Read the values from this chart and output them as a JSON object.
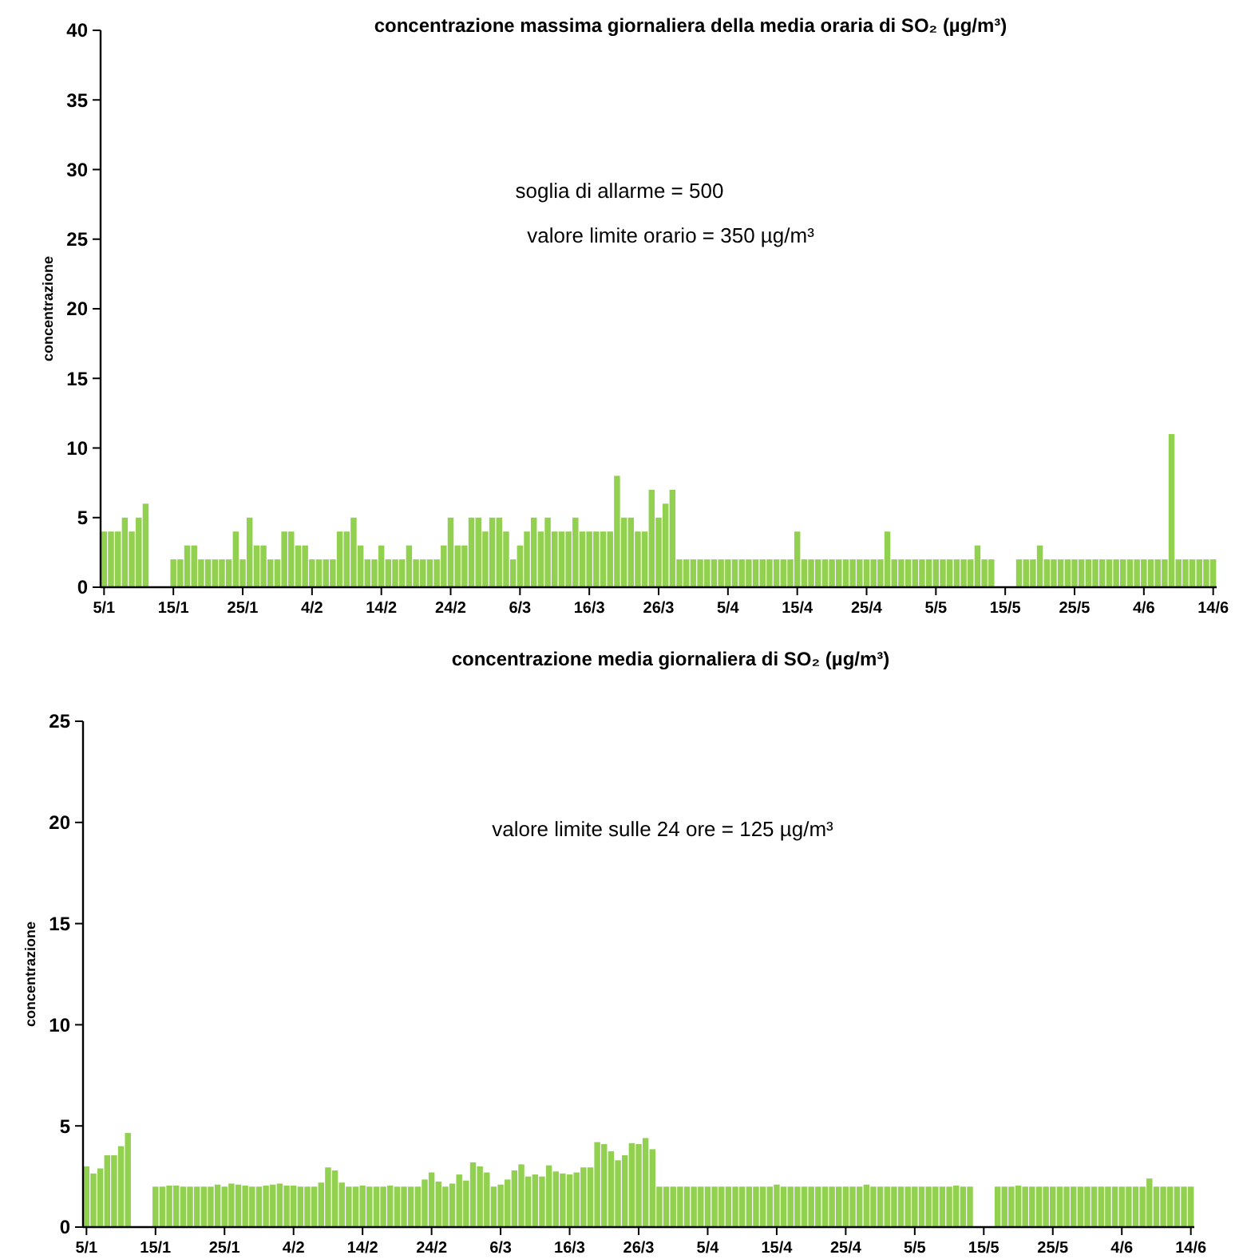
{
  "chart_data": [
    {
      "type": "bar",
      "title": "concentrazione massima giornaliera della media oraria di SO₂ (µg/m³)",
      "ylabel": "concentrazione",
      "annotations": [
        "soglia di allarme = 500",
        "valore limite orario = 350 µg/m³"
      ],
      "categories": [
        "5/1",
        null,
        null,
        null,
        null,
        null,
        null,
        null,
        null,
        null,
        "15/1",
        null,
        null,
        null,
        null,
        null,
        null,
        null,
        null,
        null,
        "25/1",
        null,
        null,
        null,
        null,
        null,
        null,
        null,
        null,
        null,
        "4/2",
        null,
        null,
        null,
        null,
        null,
        null,
        null,
        null,
        null,
        "14/2",
        null,
        null,
        null,
        null,
        null,
        null,
        null,
        null,
        null,
        "24/2",
        null,
        null,
        null,
        null,
        null,
        null,
        null,
        null,
        null,
        "6/3",
        null,
        null,
        null,
        null,
        null,
        null,
        null,
        null,
        null,
        "16/3",
        null,
        null,
        null,
        null,
        null,
        null,
        null,
        null,
        null,
        "26/3",
        null,
        null,
        null,
        null,
        null,
        null,
        null,
        null,
        null,
        "5/4",
        null,
        null,
        null,
        null,
        null,
        null,
        null,
        null,
        null,
        "15/4",
        null,
        null,
        null,
        null,
        null,
        null,
        null,
        null,
        null,
        "25/4",
        null,
        null,
        null,
        null,
        null,
        null,
        null,
        null,
        null,
        "5/5",
        null,
        null,
        null,
        null,
        null,
        null,
        null,
        null,
        null,
        "15/5",
        null,
        null,
        null,
        null,
        null,
        null,
        null,
        null,
        null,
        "25/5",
        null,
        null,
        null,
        null,
        null,
        null,
        null,
        null,
        null,
        "4/6",
        null,
        null,
        null,
        null,
        null,
        null,
        null,
        null,
        null,
        "14/6"
      ],
      "values": [
        4,
        4,
        4,
        5,
        4,
        5,
        6,
        null,
        null,
        null,
        2,
        2,
        3,
        3,
        2,
        2,
        2,
        2,
        2,
        4,
        2,
        5,
        3,
        3,
        2,
        2,
        4,
        4,
        3,
        3,
        2,
        2,
        2,
        2,
        4,
        4,
        5,
        3,
        2,
        2,
        3,
        2,
        2,
        2,
        3,
        2,
        2,
        2,
        2,
        3,
        5,
        3,
        3,
        5,
        5,
        4,
        5,
        5,
        4,
        2,
        3,
        4,
        5,
        4,
        5,
        4,
        4,
        4,
        5,
        4,
        4,
        4,
        4,
        4,
        8,
        5,
        5,
        4,
        4,
        7,
        5,
        6,
        7,
        2,
        2,
        2,
        2,
        2,
        2,
        2,
        2,
        2,
        2,
        2,
        2,
        2,
        2,
        2,
        2,
        2,
        4,
        2,
        2,
        2,
        2,
        2,
        2,
        2,
        2,
        2,
        2,
        2,
        2,
        4,
        2,
        2,
        2,
        2,
        2,
        2,
        2,
        2,
        2,
        2,
        2,
        2,
        3,
        2,
        2,
        null,
        null,
        null,
        2,
        2,
        2,
        3,
        2,
        2,
        2,
        2,
        2,
        2,
        2,
        2,
        2,
        2,
        2,
        2,
        2,
        2,
        2,
        2,
        2,
        2,
        11,
        2,
        2,
        2,
        2,
        2,
        2
      ],
      "color": "#92d050",
      "ylim": [
        0,
        40
      ],
      "yticks": [
        0,
        5,
        10,
        15,
        20,
        25,
        30,
        35,
        40
      ]
    },
    {
      "type": "bar",
      "title": "concentrazione media giornaliera di SO₂ (µg/m³)",
      "ylabel": "concentrazione",
      "annotations": [
        "valore limite sulle 24 ore = 125 µg/m³"
      ],
      "categories": [
        "5/1",
        null,
        null,
        null,
        null,
        null,
        null,
        null,
        null,
        null,
        "15/1",
        null,
        null,
        null,
        null,
        null,
        null,
        null,
        null,
        null,
        "25/1",
        null,
        null,
        null,
        null,
        null,
        null,
        null,
        null,
        null,
        "4/2",
        null,
        null,
        null,
        null,
        null,
        null,
        null,
        null,
        null,
        "14/2",
        null,
        null,
        null,
        null,
        null,
        null,
        null,
        null,
        null,
        "24/2",
        null,
        null,
        null,
        null,
        null,
        null,
        null,
        null,
        null,
        "6/3",
        null,
        null,
        null,
        null,
        null,
        null,
        null,
        null,
        null,
        "16/3",
        null,
        null,
        null,
        null,
        null,
        null,
        null,
        null,
        null,
        "26/3",
        null,
        null,
        null,
        null,
        null,
        null,
        null,
        null,
        null,
        "5/4",
        null,
        null,
        null,
        null,
        null,
        null,
        null,
        null,
        null,
        "15/4",
        null,
        null,
        null,
        null,
        null,
        null,
        null,
        null,
        null,
        "25/4",
        null,
        null,
        null,
        null,
        null,
        null,
        null,
        null,
        null,
        "5/5",
        null,
        null,
        null,
        null,
        null,
        null,
        null,
        null,
        null,
        "15/5",
        null,
        null,
        null,
        null,
        null,
        null,
        null,
        null,
        null,
        "25/5",
        null,
        null,
        null,
        null,
        null,
        null,
        null,
        null,
        null,
        "4/6",
        null,
        null,
        null,
        null,
        null,
        null,
        null,
        null,
        null,
        "14/6"
      ],
      "values": [
        3.0,
        2.65,
        2.9,
        3.55,
        3.55,
        4.0,
        4.65,
        null,
        null,
        null,
        2.0,
        2.0,
        2.05,
        2.05,
        2.0,
        2.0,
        2.0,
        2.0,
        2.0,
        2.1,
        2.0,
        2.15,
        2.1,
        2.05,
        2.0,
        2.0,
        2.05,
        2.1,
        2.15,
        2.05,
        2.05,
        2.0,
        2.0,
        2.0,
        2.2,
        2.95,
        2.8,
        2.2,
        2.0,
        2.0,
        2.05,
        2.0,
        2.0,
        2.0,
        2.05,
        2.0,
        2.0,
        2.0,
        2.0,
        2.35,
        2.7,
        2.25,
        2.0,
        2.15,
        2.6,
        2.3,
        3.2,
        3.0,
        2.7,
        2.0,
        2.1,
        2.35,
        2.8,
        3.1,
        2.5,
        2.6,
        2.5,
        3.05,
        2.75,
        2.65,
        2.6,
        2.7,
        2.95,
        2.95,
        4.2,
        4.1,
        3.75,
        3.3,
        3.55,
        4.15,
        4.1,
        4.4,
        3.85,
        2,
        2,
        2,
        2,
        2,
        2,
        2,
        2,
        2,
        2,
        2,
        2,
        2,
        2,
        2,
        2,
        2,
        2.1,
        2,
        2,
        2,
        2,
        2,
        2,
        2,
        2,
        2,
        2,
        2,
        2,
        2.1,
        2,
        2,
        2,
        2,
        2,
        2,
        2,
        2,
        2,
        2,
        2,
        2,
        2.05,
        2,
        2,
        null,
        null,
        null,
        2,
        2,
        2,
        2.05,
        2,
        2,
        2,
        2,
        2,
        2,
        2,
        2,
        2,
        2,
        2,
        2,
        2,
        2,
        2,
        2,
        2,
        2,
        2.4,
        2,
        2,
        2,
        2,
        2,
        2
      ],
      "color": "#92d050",
      "ylim": [
        0,
        25
      ],
      "yticks": [
        0,
        5,
        10,
        15,
        20,
        25
      ]
    }
  ]
}
